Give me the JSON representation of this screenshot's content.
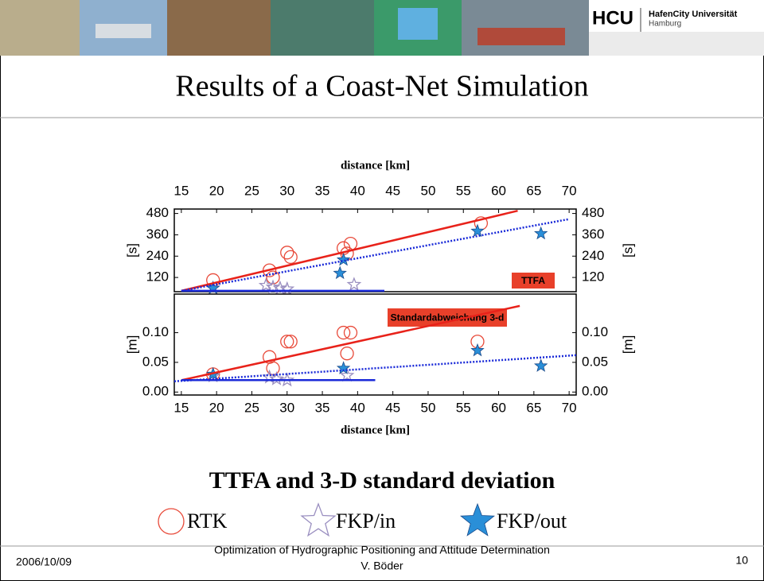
{
  "header": {
    "logo": "HCU",
    "university": "HafenCity Universität",
    "city": "Hamburg"
  },
  "title": "Results of a Coast-Net Simulation",
  "chart_data": [
    {
      "type": "scatter",
      "xlabel": "distance [km]",
      "ylabel": "[s]",
      "annotation": "TTFA",
      "xlim": [
        14,
        71
      ],
      "ylim": [
        40,
        505
      ],
      "xticks": [
        15,
        20,
        25,
        30,
        35,
        40,
        45,
        50,
        55,
        60,
        65,
        70
      ],
      "yticks": [
        120,
        240,
        360,
        480
      ],
      "series": [
        {
          "name": "RTK",
          "color": "#e84a3a",
          "marker": "circle",
          "x": [
            19.5,
            27.5,
            28,
            30,
            30.5,
            38,
            38.5,
            39,
            57.5
          ],
          "values": [
            105,
            160,
            120,
            260,
            235,
            285,
            255,
            310,
            425
          ]
        },
        {
          "name": "FKP/in",
          "color": "#9a8fc0",
          "marker": "star-open",
          "x": [
            19.5,
            27,
            28,
            29,
            30,
            39.5
          ],
          "values": [
            60,
            75,
            65,
            60,
            55,
            80
          ]
        },
        {
          "name": "FKP/out",
          "color": "#2a8fd8",
          "marker": "star",
          "x": [
            19.5,
            38,
            37.5,
            57,
            66
          ],
          "values": [
            60,
            219,
            144,
            381,
            367
          ]
        }
      ],
      "lines": [
        {
          "color": "#e8221a",
          "style": "solid",
          "x": [
            15,
            62.7
          ],
          "values": [
            45,
            495
          ]
        },
        {
          "color": "#1a2ad8",
          "style": "dotted",
          "x": [
            15,
            70
          ],
          "values": [
            45,
            448
          ]
        },
        {
          "color": "#1a2ad8",
          "style": "solid",
          "x": [
            15,
            43.8
          ],
          "values": [
            45,
            45
          ]
        }
      ]
    },
    {
      "type": "scatter",
      "xlabel": "distance [km]",
      "ylabel": "[m]",
      "annotation": "Standardabweichung 3-d",
      "xlim": [
        14,
        71
      ],
      "ylim": [
        -0.005,
        0.165
      ],
      "xticks": [
        15,
        20,
        25,
        30,
        35,
        40,
        45,
        50,
        55,
        60,
        65,
        70
      ],
      "yticks": [
        {
          "value": 0,
          "label": "0.00"
        },
        0.05,
        {
          "value": 0.1,
          "label": "0.10"
        }
      ],
      "series": [
        {
          "name": "RTK",
          "color": "#e84a3a",
          "marker": "circle",
          "x": [
            19.5,
            27.5,
            28,
            30,
            30.5,
            38,
            39,
            38.5,
            57
          ],
          "values": [
            0.03,
            0.059,
            0.04,
            0.085,
            0.085,
            0.1,
            0.1,
            0.065,
            0.085
          ]
        },
        {
          "name": "FKP/in",
          "color": "#9a8fc0",
          "marker": "star-open",
          "x": [
            19.5,
            27.5,
            28.5,
            30,
            38.5
          ],
          "values": [
            0.027,
            0.025,
            0.022,
            0.02,
            0.028
          ]
        },
        {
          "name": "FKP/out",
          "color": "#2a8fd8",
          "marker": "star",
          "x": [
            19.5,
            38,
            57,
            66
          ],
          "values": [
            0.03,
            0.04,
            0.07,
            0.044
          ]
        }
      ],
      "lines": [
        {
          "color": "#e8221a",
          "style": "solid",
          "x": [
            15,
            63
          ],
          "values": [
            0.02,
            0.145
          ]
        },
        {
          "color": "#1a2ad8",
          "style": "dotted",
          "x": [
            14,
            71
          ],
          "values": [
            0.018,
            0.062
          ]
        },
        {
          "color": "#1a2ad8",
          "style": "solid",
          "x": [
            15,
            42.5
          ],
          "values": [
            0.02,
            0.02
          ]
        }
      ]
    }
  ],
  "caption": "TTFA and 3-D standard deviation",
  "footer": {
    "date": "2006/10/09",
    "line1": "Optimization of Hydrographic Positioning and Attitude Determination",
    "line2": "V. Böder",
    "page": "10"
  }
}
